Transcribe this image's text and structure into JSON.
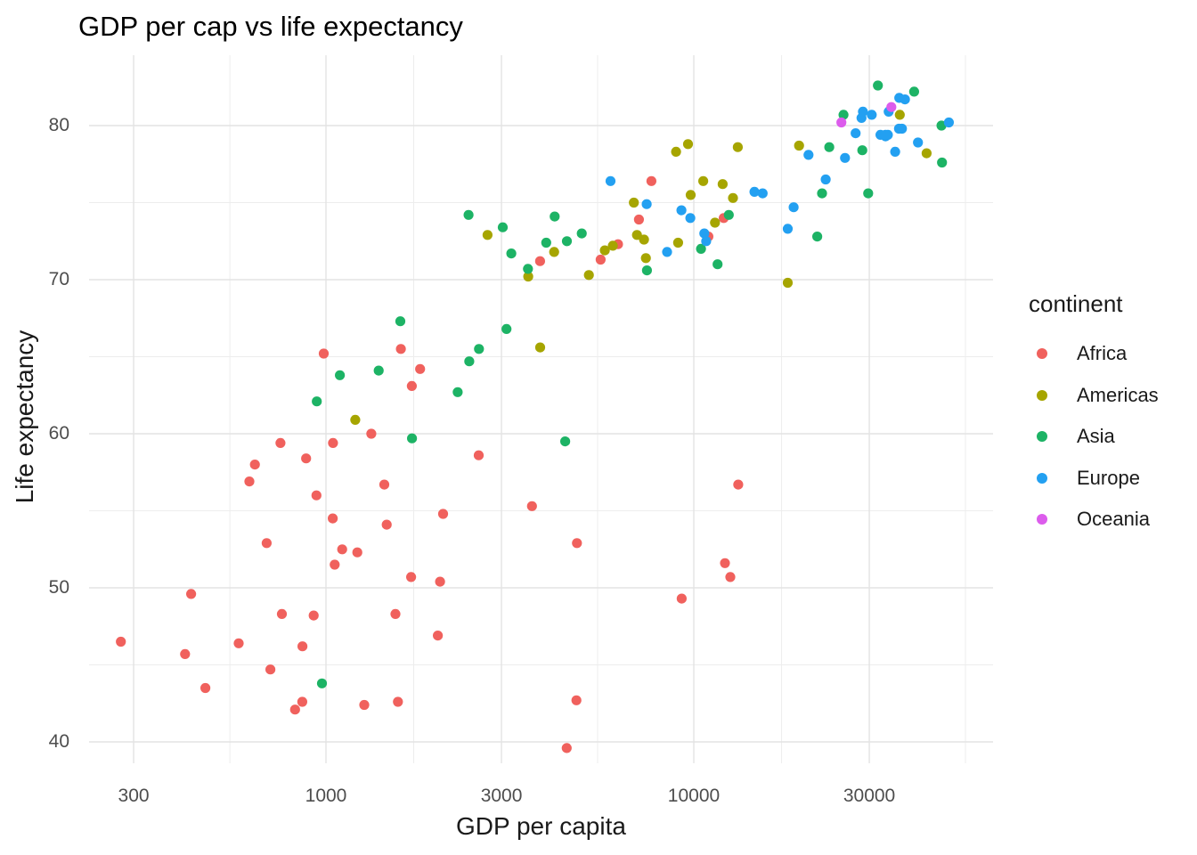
{
  "title": "GDP per cap vs life expectancy",
  "axes": {
    "x": {
      "label": "GDP per capita",
      "scale": "log10",
      "ticks": [
        300,
        1000,
        3000,
        10000,
        30000
      ],
      "tick_labels": [
        "300",
        "1000",
        "3000",
        "10000",
        "30000"
      ],
      "minor_ticks": [
        548,
        1732,
        5477,
        17321,
        54772
      ]
    },
    "y": {
      "label": "Life expectancy",
      "ticks": [
        40,
        50,
        60,
        70,
        80
      ],
      "tick_labels": [
        "40",
        "50",
        "60",
        "70",
        "80"
      ],
      "minor_ticks": [
        45,
        55,
        65,
        75
      ]
    }
  },
  "legend": {
    "title": "continent",
    "position": "right",
    "items": [
      {
        "label": "Africa",
        "color": "#F0615D"
      },
      {
        "label": "Americas",
        "color": "#A6A500"
      },
      {
        "label": "Asia",
        "color": "#1DB365"
      },
      {
        "label": "Europe",
        "color": "#23A0F1"
      },
      {
        "label": "Oceania",
        "color": "#DC5CEC"
      }
    ]
  },
  "style": {
    "background": "#ffffff",
    "grid_major_color": "#E3E3E3",
    "grid_minor_color": "#EDEDED",
    "tick_text_color": "#4d4d4d",
    "point_radius": 5.6
  },
  "chart_data": {
    "type": "scatter",
    "title": "GDP per cap vs life expectancy",
    "xlabel": "GDP per capita",
    "ylabel": "Life expectancy",
    "x_scale": "log10",
    "xlim": [
      215,
      64000
    ],
    "ylim": [
      37.5,
      84.8
    ],
    "grid": true,
    "legend_position": "right",
    "point_format": "[gdp_per_capita, life_expectancy]",
    "series": [
      {
        "name": "Africa",
        "color": "#F0615D",
        "points": [
          [
            6223,
            72.3
          ],
          [
            4797,
            42.7
          ],
          [
            1441,
            56.7
          ],
          [
            12570,
            50.7
          ],
          [
            1217,
            52.3
          ],
          [
            430,
            49.6
          ],
          [
            2042,
            50.4
          ],
          [
            706,
            44.7
          ],
          [
            1704,
            50.7
          ],
          [
            986,
            65.2
          ],
          [
            277,
            46.5
          ],
          [
            3632,
            55.3
          ],
          [
            1545,
            48.3
          ],
          [
            2082,
            54.8
          ],
          [
            5581,
            71.3
          ],
          [
            12154,
            51.6
          ],
          [
            641,
            58.0
          ],
          [
            690,
            52.9
          ],
          [
            13206,
            56.7
          ],
          [
            752,
            59.4
          ],
          [
            1328,
            60.0
          ],
          [
            942,
            56.0
          ],
          [
            579,
            46.4
          ],
          [
            1463,
            54.1
          ],
          [
            1569,
            42.6
          ],
          [
            414,
            45.7
          ],
          [
            12057,
            74.0
          ],
          [
            1045,
            59.4
          ],
          [
            759,
            48.3
          ],
          [
            1043,
            54.5
          ],
          [
            1803,
            64.2
          ],
          [
            10957,
            72.8
          ],
          [
            3820,
            71.2
          ],
          [
            824,
            42.1
          ],
          [
            4811,
            52.9
          ],
          [
            619,
            56.9
          ],
          [
            2014,
            46.9
          ],
          [
            7670,
            76.4
          ],
          [
            863,
            46.2
          ],
          [
            1598,
            65.5
          ],
          [
            1712,
            63.1
          ],
          [
            862,
            42.6
          ],
          [
            926,
            48.2
          ],
          [
            9270,
            49.3
          ],
          [
            2602,
            58.6
          ],
          [
            4513,
            39.6
          ],
          [
            1107,
            52.5
          ],
          [
            883,
            58.4
          ],
          [
            7093,
            73.9
          ],
          [
            1056,
            51.5
          ],
          [
            1271,
            42.4
          ],
          [
            470,
            43.5
          ]
        ]
      },
      {
        "name": "Americas",
        "color": "#A6A500",
        "points": [
          [
            12779,
            75.3
          ],
          [
            3822,
            65.6
          ],
          [
            9066,
            72.4
          ],
          [
            36319,
            80.7
          ],
          [
            13171,
            78.6
          ],
          [
            7007,
            72.9
          ],
          [
            9645,
            78.8
          ],
          [
            8948,
            78.3
          ],
          [
            6025,
            72.2
          ],
          [
            6873,
            75.0
          ],
          [
            5728,
            71.9
          ],
          [
            5186,
            70.3
          ],
          [
            1201,
            60.9
          ],
          [
            3548,
            70.2
          ],
          [
            7321,
            72.6
          ],
          [
            11978,
            76.2
          ],
          [
            2749,
            72.9
          ],
          [
            9809,
            75.5
          ],
          [
            4173,
            71.8
          ],
          [
            7409,
            71.4
          ],
          [
            19329,
            78.7
          ],
          [
            18009,
            69.8
          ],
          [
            42952,
            78.2
          ],
          [
            10611,
            76.4
          ],
          [
            11416,
            73.7
          ]
        ]
      },
      {
        "name": "Asia",
        "color": "#1DB365",
        "points": [
          [
            975,
            43.8
          ],
          [
            29796,
            75.6
          ],
          [
            1391,
            64.1
          ],
          [
            1714,
            59.7
          ],
          [
            4959,
            73.0
          ],
          [
            39725,
            82.2
          ],
          [
            2452,
            64.7
          ],
          [
            3541,
            70.7
          ],
          [
            11606,
            71.0
          ],
          [
            4471,
            59.5
          ],
          [
            25523,
            80.7
          ],
          [
            31656,
            82.6
          ],
          [
            4519,
            72.5
          ],
          [
            1593,
            67.3
          ],
          [
            23348,
            78.6
          ],
          [
            47307,
            77.6
          ],
          [
            10461,
            72.0
          ],
          [
            12452,
            74.2
          ],
          [
            3096,
            66.8
          ],
          [
            944,
            62.1
          ],
          [
            1091,
            63.8
          ],
          [
            22316,
            75.6
          ],
          [
            2606,
            65.5
          ],
          [
            3190,
            71.7
          ],
          [
            21655,
            72.8
          ],
          [
            47143,
            80.0
          ],
          [
            3970,
            72.4
          ],
          [
            4185,
            74.1
          ],
          [
            28718,
            78.4
          ],
          [
            7458,
            70.6
          ],
          [
            2442,
            74.2
          ],
          [
            3025,
            73.4
          ],
          [
            2281,
            62.7
          ]
        ]
      },
      {
        "name": "Europe",
        "color": "#23A0F1",
        "points": [
          [
            5937,
            76.4
          ],
          [
            36126,
            79.8
          ],
          [
            33693,
            79.4
          ],
          [
            7446,
            74.9
          ],
          [
            10681,
            73.0
          ],
          [
            14619,
            75.7
          ],
          [
            22833,
            76.5
          ],
          [
            35278,
            78.3
          ],
          [
            33207,
            79.3
          ],
          [
            30470,
            80.7
          ],
          [
            32170,
            79.4
          ],
          [
            27538,
            79.5
          ],
          [
            18009,
            73.3
          ],
          [
            36181,
            81.8
          ],
          [
            40676,
            78.9
          ],
          [
            28570,
            80.5
          ],
          [
            9254,
            74.5
          ],
          [
            36798,
            79.8
          ],
          [
            49357,
            80.2
          ],
          [
            15390,
            75.6
          ],
          [
            20510,
            78.1
          ],
          [
            10808,
            72.5
          ],
          [
            9787,
            74.0
          ],
          [
            18678,
            74.7
          ],
          [
            25768,
            77.9
          ],
          [
            28821,
            80.9
          ],
          [
            33860,
            80.9
          ],
          [
            37506,
            81.7
          ],
          [
            8458,
            71.8
          ],
          [
            33203,
            79.4
          ]
        ]
      },
      {
        "name": "Oceania",
        "color": "#DC5CEC",
        "points": [
          [
            34435,
            81.2
          ],
          [
            25185,
            80.2
          ]
        ]
      }
    ]
  }
}
